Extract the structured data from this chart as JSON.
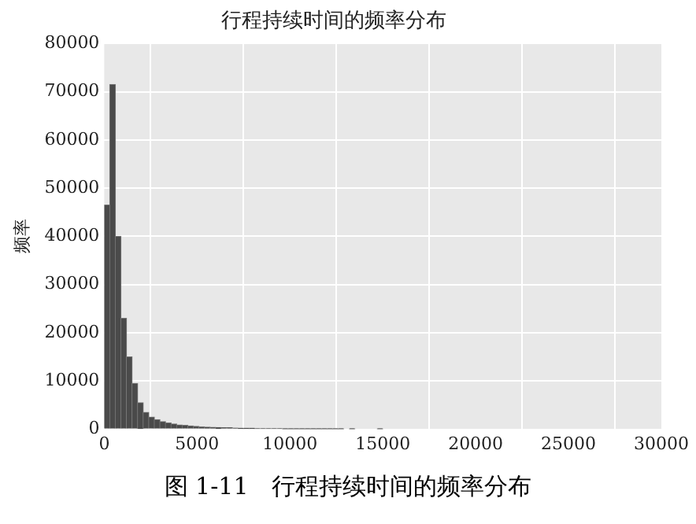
{
  "chart_data": {
    "type": "histogram",
    "title": "行程持续时间的频率分布",
    "ylabel": "频率",
    "annotations": [
      "图 1-11　行程持续时间的频率分布"
    ],
    "bins": [
      0,
      300,
      600,
      900,
      1200,
      1500,
      1800,
      2100,
      2400,
      2700,
      3000,
      3300,
      3600,
      3900,
      4200,
      4500,
      4800,
      5100,
      5400,
      5700,
      6000,
      6300,
      6600,
      6900,
      7200,
      7500,
      7800,
      8100,
      8400,
      8700,
      9000,
      9300,
      9600,
      9900,
      10200,
      10500,
      10800,
      11100,
      11400,
      11700,
      12000,
      12300,
      12600,
      12900,
      13200,
      13500,
      13800,
      14100,
      14400,
      14700,
      15000,
      15300,
      15600,
      15900,
      16200,
      16500,
      16800,
      17100,
      17400,
      17700,
      18000,
      18300,
      18600,
      18900,
      19200,
      19500,
      19800,
      20100,
      20400,
      20700,
      21000,
      21300,
      21600,
      21900,
      22200,
      22500,
      22800,
      23100,
      23400,
      23700,
      24000,
      24300,
      24600,
      24900,
      25200,
      25500,
      25800,
      26100,
      26400,
      26700,
      27000,
      27300,
      27600,
      27900,
      28200,
      28500,
      28800,
      29100,
      29400,
      29700,
      30000
    ],
    "values": [
      46500,
      71500,
      40000,
      23000,
      15000,
      9500,
      5500,
      3500,
      2500,
      2000,
      1600,
      1300,
      1100,
      900,
      800,
      700,
      600,
      500,
      450,
      400,
      350,
      300,
      300,
      250,
      200,
      200,
      200,
      150,
      150,
      150,
      150,
      150,
      100,
      100,
      100,
      100,
      100,
      100,
      100,
      100,
      100,
      100,
      100,
      0,
      100,
      0,
      0,
      0,
      0,
      100,
      0,
      0,
      0,
      0,
      0,
      0,
      0,
      0,
      0,
      0,
      0,
      0,
      0,
      0,
      0,
      0,
      0,
      0,
      0,
      0,
      0,
      0,
      0,
      0,
      0,
      0,
      0,
      0,
      0,
      0,
      0,
      0,
      0,
      0,
      0,
      0,
      0,
      0,
      0,
      0,
      0,
      0,
      0,
      0,
      0,
      0,
      0,
      0,
      0,
      0
    ],
    "color": "#4a4a4a",
    "xlim": [
      0,
      30000
    ],
    "xticks": [
      0,
      5000,
      10000,
      15000,
      20000,
      25000,
      30000
    ],
    "ylim": [
      0,
      80000
    ],
    "yticks": [
      0,
      10000,
      20000,
      30000,
      40000,
      50000,
      60000,
      70000,
      80000
    ],
    "grid": true
  }
}
